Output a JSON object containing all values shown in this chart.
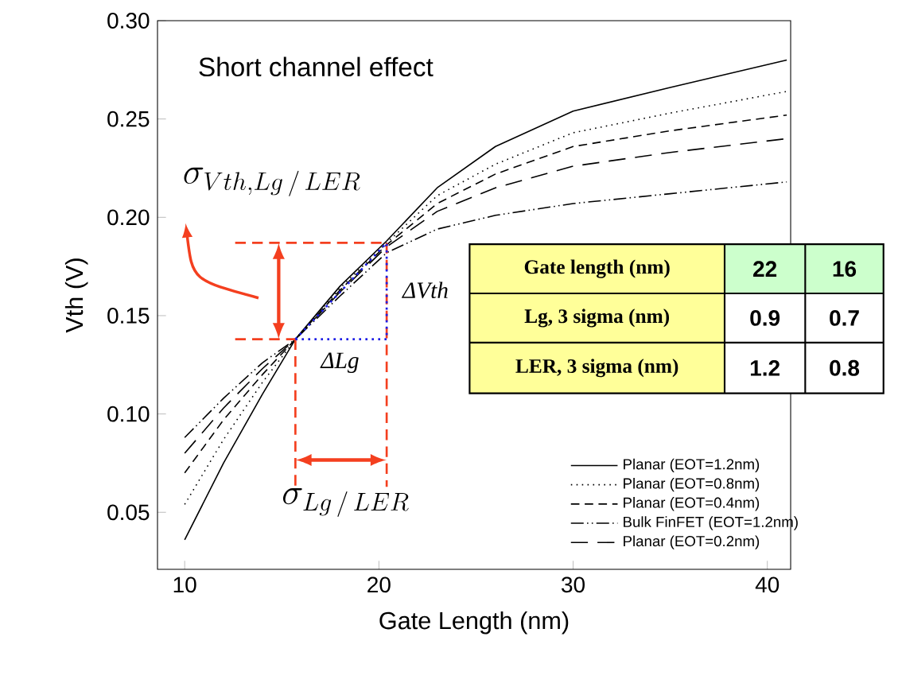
{
  "chart_data": {
    "type": "line",
    "title": "Short channel effect",
    "xlabel": "Gate Length (nm)",
    "ylabel": "Vth (V)",
    "x": [
      10,
      12,
      14,
      15.7,
      18,
      20.4,
      23,
      26,
      30,
      35,
      41
    ],
    "series": [
      {
        "name": "Planar (EOT=1.2nm)",
        "color": "#000000",
        "line_style": "solid",
        "values": [
          0.036,
          0.075,
          0.11,
          0.138,
          0.165,
          0.188,
          0.215,
          0.236,
          0.254,
          0.266,
          0.28
        ]
      },
      {
        "name": "Planar (EOT=0.8nm)",
        "color": "#000000",
        "line_style": "dotted",
        "values": [
          0.054,
          0.087,
          0.116,
          0.138,
          0.164,
          0.187,
          0.211,
          0.227,
          0.243,
          0.253,
          0.264
        ]
      },
      {
        "name": "Planar (EOT=0.4nm)",
        "color": "#000000",
        "line_style": "dashed",
        "values": [
          0.07,
          0.097,
          0.12,
          0.138,
          0.163,
          0.186,
          0.207,
          0.222,
          0.236,
          0.244,
          0.252
        ]
      },
      {
        "name": "Bulk FinFET (EOT=1.2nm)",
        "color": "#000000",
        "line_style": "dashdot",
        "values": [
          0.088,
          0.108,
          0.126,
          0.138,
          0.16,
          0.182,
          0.194,
          0.201,
          0.207,
          0.212,
          0.218
        ]
      },
      {
        "name": "Planar (EOT=0.2nm)",
        "color": "#000000",
        "line_style": "longdash",
        "values": [
          0.08,
          0.103,
          0.123,
          0.138,
          0.162,
          0.185,
          0.203,
          0.215,
          0.226,
          0.233,
          0.24
        ]
      }
    ],
    "xlim": [
      8.6,
      41.2
    ],
    "ylim": [
      0.021,
      0.3
    ],
    "xticks": [
      10,
      20,
      30,
      40
    ],
    "yticks": [
      {
        "value": 0.05,
        "label": "0.05"
      },
      {
        "value": 0.1,
        "label": "0.10"
      },
      {
        "value": 0.15,
        "label": "0.15"
      },
      {
        "value": 0.2,
        "label": "0.20"
      },
      {
        "value": 0.25,
        "label": "0.25"
      },
      {
        "value": 0.3,
        "label": "0.30"
      }
    ],
    "legend": "bottom right",
    "annotations": [
      "\\sigma_{Vth,Lg\\,/\\,LER}",
      {
        "text": "\\sigma_{Lg\\,/\\,LER}",
        "x": 15.7,
        "y": 0.138
      },
      "ΔVth",
      {
        "text": "ΔLg",
        "x": 15.7,
        "y": 0.138
      },
      "Gate length (nm)",
      "22",
      "16",
      "Lg, 3 sigma (nm)",
      "0.9",
      "0.7",
      "LER, 3 sigma (nm)",
      "1.2",
      "0.8"
    ]
  }
}
